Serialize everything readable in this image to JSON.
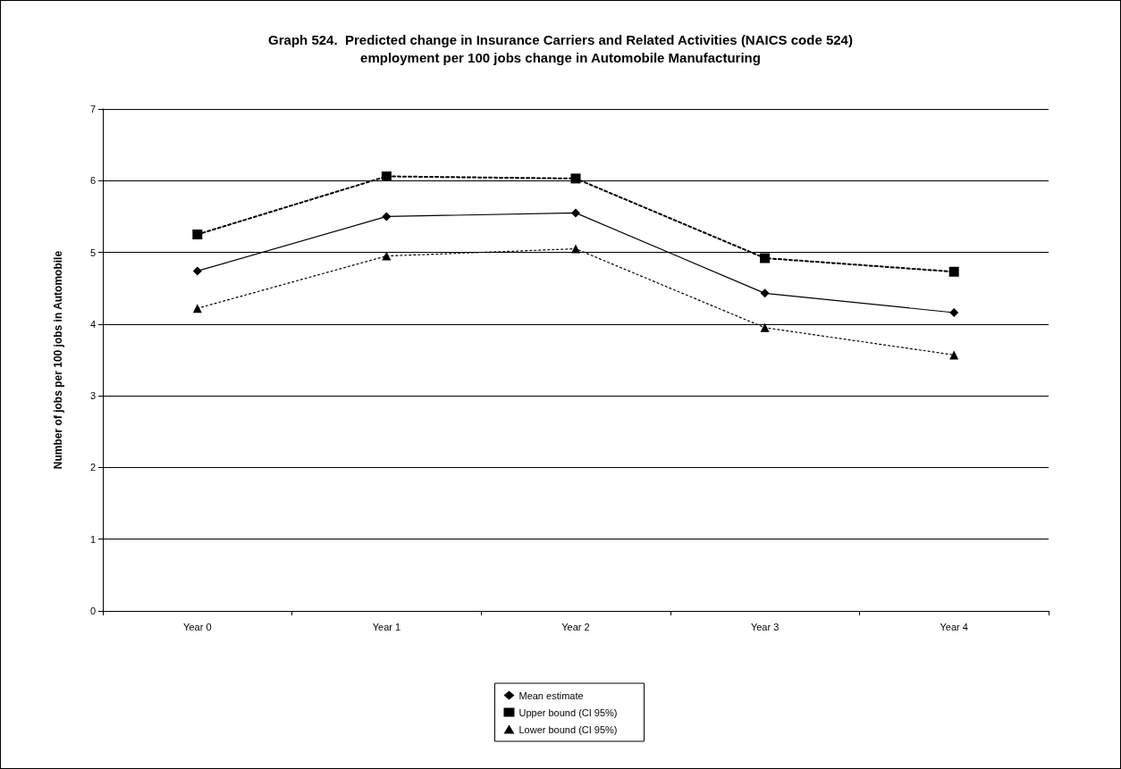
{
  "chart_data": {
    "type": "line",
    "title": "Graph 524.  Predicted change in Insurance Carriers and Related Activities (NAICS code 524)\nemployment per 100 jobs change in Automobile Manufacturing",
    "ylabel": "Number of jobs per 100 jobs in Automobile",
    "categories": [
      "Year 0",
      "Year 1",
      "Year 2",
      "Year 3",
      "Year 4"
    ],
    "series": [
      {
        "name": "Mean estimate",
        "color": "#000000",
        "marker": "diamond",
        "line_style": "solid",
        "values": [
          4.74,
          5.5,
          5.55,
          4.43,
          4.16
        ]
      },
      {
        "name": "Upper bound (CI 95%)",
        "color": "#000000",
        "marker": "square",
        "line_style": "dotted",
        "values": [
          5.25,
          6.06,
          6.03,
          4.92,
          4.73
        ]
      },
      {
        "name": "Lower bound (CI 95%)",
        "color": "#000000",
        "marker": "triangle",
        "line_style": "dashed",
        "values": [
          4.22,
          4.95,
          5.05,
          3.95,
          3.57
        ]
      }
    ],
    "ylim": [
      0,
      7
    ],
    "yticks": [
      0,
      1,
      2,
      3,
      4,
      5,
      6,
      7
    ],
    "grid": "y",
    "legend": "bottom"
  }
}
